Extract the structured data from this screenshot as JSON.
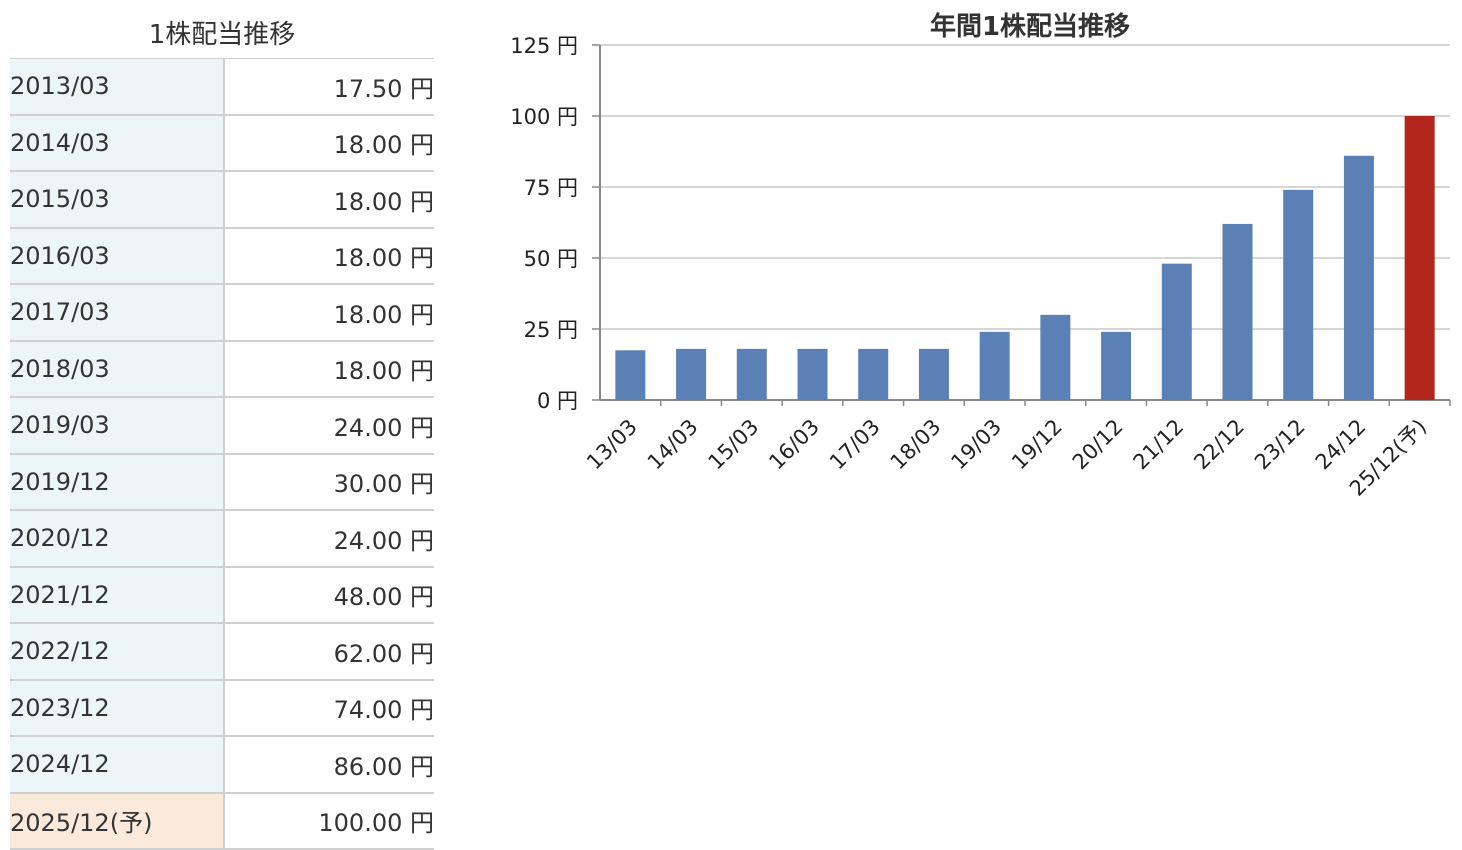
{
  "table": {
    "title": "1株配当推移",
    "rows": [
      {
        "period": "2013/03",
        "value": "17.50 円"
      },
      {
        "period": "2014/03",
        "value": "18.00 円"
      },
      {
        "period": "2015/03",
        "value": "18.00 円"
      },
      {
        "period": "2016/03",
        "value": "18.00 円"
      },
      {
        "period": "2017/03",
        "value": "18.00 円"
      },
      {
        "period": "2018/03",
        "value": "18.00 円"
      },
      {
        "period": "2019/03",
        "value": "24.00 円"
      },
      {
        "period": "2019/12",
        "value": "30.00 円"
      },
      {
        "period": "2020/12",
        "value": "24.00 円"
      },
      {
        "period": "2021/12",
        "value": "48.00 円"
      },
      {
        "period": "2022/12",
        "value": "62.00 円"
      },
      {
        "period": "2023/12",
        "value": "74.00 円"
      },
      {
        "period": "2024/12",
        "value": "86.00 円"
      },
      {
        "period": "2025/12(予)",
        "value": "100.00 円",
        "forecast": true
      }
    ]
  },
  "chart_data": {
    "type": "bar",
    "title": "年間1株配当推移",
    "categories": [
      "13/03",
      "14/03",
      "15/03",
      "16/03",
      "17/03",
      "18/03",
      "19/03",
      "19/12",
      "20/12",
      "21/12",
      "22/12",
      "23/12",
      "24/12",
      "25/12(予)"
    ],
    "values": [
      17.5,
      18,
      18,
      18,
      18,
      18,
      24,
      30,
      24,
      48,
      62,
      74,
      86,
      100
    ],
    "ylim": [
      0,
      125
    ],
    "yticks": [
      0,
      25,
      50,
      75,
      100,
      125
    ],
    "ytick_labels": [
      "0 円",
      "25 円",
      "50 円",
      "75 円",
      "100 円",
      "125 円"
    ],
    "xlabel": "",
    "ylabel": "",
    "grid": true,
    "bar_color": "#5b80b5",
    "forecast_color": "#b2261c",
    "forecast_index": 13
  }
}
